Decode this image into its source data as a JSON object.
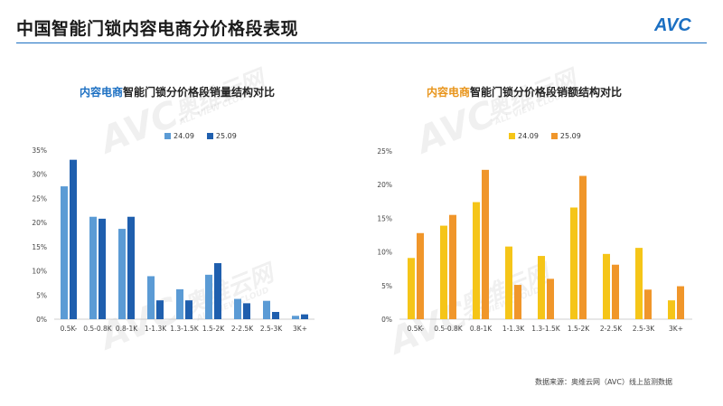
{
  "header": {
    "title": "中国智能门锁内容电商分价格段表现",
    "logo_text": "AVC"
  },
  "watermark": {
    "brand": "AVC",
    "cn": "奥维云网",
    "en": "ALL VIEW CLOUD"
  },
  "source_note": "数据来源：奥维云网（AVC）线上监测数据",
  "colors": {
    "accent_blue": "#1b6fc2",
    "bar_light_blue": "#5b9bd5",
    "bar_dark_blue": "#1f5fae",
    "bar_yellow": "#f5c518",
    "bar_orange": "#f0962a"
  },
  "chart_data": [
    {
      "type": "bar",
      "title_highlight": "内容电商",
      "title_rest": "智能门锁分价格段销量结构对比",
      "categories": [
        "0.5K-",
        "0.5-0.8K",
        "0.8-1K",
        "1-1.3K",
        "1.3-1.5K",
        "1.5-2K",
        "2-2.5K",
        "2.5-3K",
        "3K+"
      ],
      "series": [
        {
          "name": "24.09",
          "values": [
            27.5,
            21.2,
            18.7,
            8.9,
            6.2,
            9.2,
            4.2,
            3.8,
            0.7
          ]
        },
        {
          "name": "25.09",
          "values": [
            33.0,
            20.8,
            21.2,
            3.9,
            3.9,
            11.6,
            3.3,
            1.5,
            1.0
          ]
        }
      ],
      "yticks": [
        "0%",
        "5%",
        "10%",
        "15%",
        "20%",
        "25%",
        "30%",
        "35%"
      ],
      "ylim": [
        0,
        35
      ],
      "legend_position": "top"
    },
    {
      "type": "bar",
      "title_highlight": "内容电商",
      "title_rest": "智能门锁分价格段销额结构对比",
      "categories": [
        "0.5K-",
        "0.5-0.8K",
        "0.8-1K",
        "1-1.3K",
        "1.3-1.5K",
        "1.5-2K",
        "2-2.5K",
        "2.5-3K",
        "3K+"
      ],
      "series": [
        {
          "name": "24.09",
          "values": [
            9.1,
            13.9,
            17.4,
            10.8,
            9.4,
            16.6,
            9.7,
            10.6,
            2.8
          ]
        },
        {
          "name": "25.09",
          "values": [
            12.8,
            15.5,
            22.2,
            5.1,
            6.0,
            21.3,
            8.1,
            4.4,
            4.9
          ]
        }
      ],
      "yticks": [
        "0%",
        "5%",
        "10%",
        "15%",
        "20%",
        "25%"
      ],
      "ylim": [
        0,
        25
      ],
      "legend_position": "top"
    }
  ]
}
